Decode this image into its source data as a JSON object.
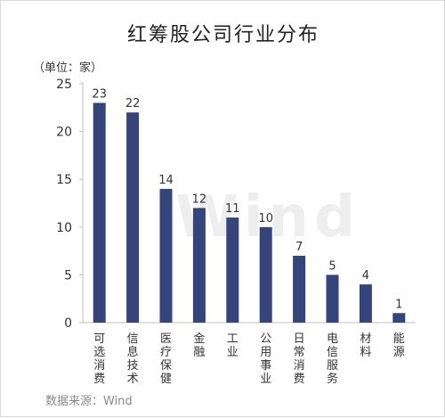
{
  "title": "红筹股公司行业分布",
  "unit_label": "（单位：家）",
  "source": "数据来源：Wind",
  "watermark": "Wind",
  "colors": {
    "bar": "#35447a",
    "axis": "#bfbfbf",
    "text": "#333333"
  },
  "chart_data": {
    "type": "bar",
    "title": "红筹股公司行业分布",
    "ylabel": "（单位：家）",
    "xlabel": "",
    "ylim": [
      0,
      25
    ],
    "yticks": [
      0,
      5,
      10,
      15,
      20,
      25
    ],
    "grid": false,
    "legend": "none",
    "categories": [
      "可选消费",
      "信息技术",
      "医疗保健",
      "金融",
      "工业",
      "公用事业",
      "日常消费",
      "电信服务",
      "材料",
      "能源"
    ],
    "values": [
      23,
      22,
      14,
      12,
      11,
      10,
      7,
      5,
      4,
      1
    ]
  }
}
